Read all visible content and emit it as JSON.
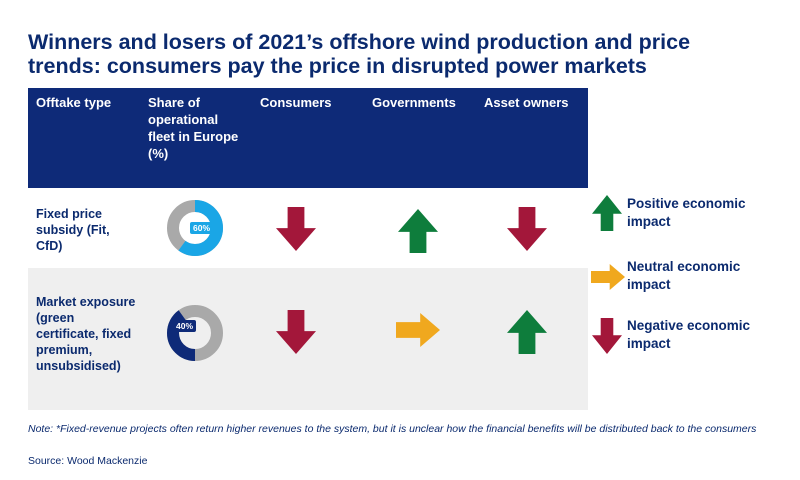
{
  "title": "Winners and losers of 2021’s offshore wind production and price trends: consumers pay the price in disrupted power markets",
  "colors": {
    "header": "#0e2a78",
    "up": "#0e7d3c",
    "down": "#a3173a",
    "neutral": "#f0a81e",
    "donut_fixed": "#1aa6e6",
    "donut_market": "#0e2a78",
    "donut_rest": "#a9a9a9"
  },
  "chart_data": {
    "type": "table",
    "columns": [
      "Offtake type",
      "Share of operational fleet in Europe (%)",
      "Consumers",
      "Governments",
      "Asset owners"
    ],
    "rows": [
      {
        "offtake": "Fixed price subsidy (Fit, CfD)",
        "share_pct": 60,
        "share_label": "60%",
        "consumers": "negative",
        "governments": "positive",
        "asset_owners": "negative"
      },
      {
        "offtake": "Market exposure (green certificate, fixed premium, unsubsidised)",
        "share_pct": 40,
        "share_label": "40%",
        "consumers": "negative",
        "governments": "neutral",
        "asset_owners": "positive"
      }
    ],
    "legend": [
      {
        "impact": "positive",
        "label": "Positive economic impact",
        "icon": "arrow-up-icon"
      },
      {
        "impact": "neutral",
        "label": "Neutral economic impact",
        "icon": "arrow-right-icon"
      },
      {
        "impact": "negative",
        "label": "Negative economic impact",
        "icon": "arrow-down-icon"
      }
    ]
  },
  "note": "Note: *Fixed-revenue projects often return higher revenues to the system, but it is unclear how the financial benefits will be distributed back to the consumers",
  "source": "Source: Wood Mackenzie"
}
